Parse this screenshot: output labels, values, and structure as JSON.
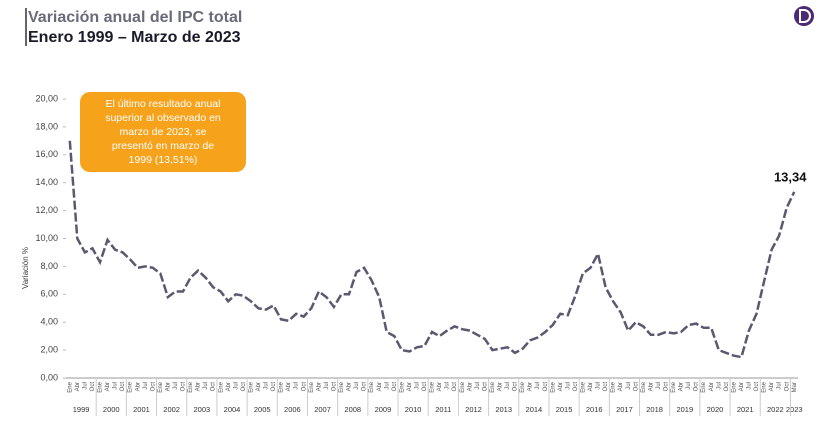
{
  "chart_data": {
    "type": "line",
    "title": "Variación anual del IPC total",
    "subtitle": "Enero 1999 – Marzo de 2023",
    "y_label": "Variación %",
    "annotation": [
      "El último resultado anual",
      "superior al observado en",
      "marzo de 2023, se",
      "presentó en marzo de",
      "1999 (13,51%)"
    ],
    "categories": [
      "Ene",
      "Abr",
      "Jul",
      "Oct",
      "Ene",
      "Abr",
      "Jul",
      "Oct",
      "Ene",
      "Abr",
      "Jul",
      "Oct",
      "Ene",
      "Abr",
      "Jul",
      "Oct",
      "Ene",
      "Abr",
      "Jul",
      "Oct",
      "Ene",
      "Abr",
      "Jul",
      "Oct",
      "Ene",
      "Abr",
      "Jul",
      "Oct",
      "Ene",
      "Abr",
      "Jul",
      "Oct",
      "Ene",
      "Abr",
      "Jul",
      "Oct",
      "Ene",
      "Abr",
      "Jul",
      "Oct",
      "Ene",
      "Abr",
      "Jul",
      "Oct",
      "Ene",
      "Abr",
      "Jul",
      "Oct",
      "Ene",
      "Abr",
      "Jul",
      "Oct",
      "Ene",
      "Abr",
      "Jul",
      "Oct",
      "Ene",
      "Abr",
      "Jul",
      "Oct",
      "Ene",
      "Abr",
      "Jul",
      "Oct",
      "Ene",
      "Abr",
      "Jul",
      "Oct",
      "Ene",
      "Abr",
      "Jul",
      "Oct",
      "Ene",
      "Abr",
      "Jul",
      "Oct",
      "Ene",
      "Abr",
      "Jul",
      "Oct",
      "Ene",
      "Abr",
      "Jul",
      "Oct",
      "Ene",
      "Abr",
      "Jul",
      "Oct",
      "Ene",
      "Abr",
      "Jul",
      "Oct",
      "Ene",
      "Abr",
      "Jul",
      "Oct",
      "Mar"
    ],
    "years": [
      "1999",
      "2000",
      "2001",
      "2002",
      "2003",
      "2004",
      "2005",
      "2006",
      "2007",
      "2008",
      "2009",
      "2010",
      "2011",
      "2012",
      "2013",
      "2014",
      "2015",
      "2016",
      "2017",
      "2018",
      "2019",
      "2020",
      "2021",
      "2022",
      "2023"
    ],
    "series": [
      {
        "name": "IPC",
        "color": "#5b5870",
        "values": [
          17,
          10,
          9,
          9.3,
          8.3,
          9.9,
          9.2,
          9.0,
          8.5,
          7.9,
          8.0,
          7.9,
          7.5,
          5.8,
          6.2,
          6.2,
          7.2,
          7.7,
          7.2,
          6.5,
          6.2,
          5.5,
          6.0,
          5.9,
          5.5,
          5.0,
          4.9,
          5.2,
          4.2,
          4.1,
          4.6,
          4.4,
          5.0,
          6.2,
          5.8,
          5.1,
          6.0,
          6.0,
          7.6,
          7.9,
          7.0,
          5.8,
          3.3,
          3.0,
          2.0,
          1.9,
          2.2,
          2.3,
          3.3,
          3.0,
          3.4,
          3.7,
          3.5,
          3.4,
          3.1,
          2.8,
          2.0,
          2.1,
          2.2,
          1.8,
          2.1,
          2.7,
          2.9,
          3.3,
          3.8,
          4.6,
          4.5,
          5.9,
          7.5,
          7.9,
          8.9,
          6.5,
          5.5,
          4.7,
          3.4,
          4.0,
          3.7,
          3.1,
          3.1,
          3.3,
          3.2,
          3.3,
          3.8,
          3.9,
          3.6,
          3.6,
          2.0,
          1.8,
          1.6,
          1.5,
          3.4,
          4.6,
          6.9,
          9.2,
          10.2,
          12.2,
          13.34
        ],
        "value_labels": [
          null,
          null,
          null,
          null,
          null,
          null,
          null,
          null,
          null,
          null,
          null,
          null,
          null,
          null,
          null,
          null,
          null,
          null,
          null,
          null,
          null,
          null,
          null,
          null,
          null,
          null,
          null,
          null,
          null,
          null,
          null,
          null,
          null,
          null,
          null,
          null,
          null,
          null,
          null,
          null,
          null,
          null,
          null,
          null,
          null,
          null,
          null,
          null,
          null,
          null,
          null,
          null,
          null,
          null,
          null,
          null,
          null,
          null,
          null,
          null,
          null,
          null,
          null,
          null,
          null,
          null,
          null,
          null,
          null,
          null,
          null,
          null,
          null,
          null,
          null,
          null,
          null,
          null,
          null,
          null,
          null,
          null,
          null,
          null,
          null,
          null,
          null,
          null,
          null,
          null,
          null,
          null,
          null,
          null,
          null,
          null,
          "13,34"
        ]
      }
    ],
    "ylim": [
      0,
      20
    ],
    "yticks": [
      {
        "value": 0,
        "label": "0,00"
      },
      {
        "value": 2,
        "label": "2,00"
      },
      {
        "value": 4,
        "label": "4,00"
      },
      {
        "value": 6,
        "label": "6,00"
      },
      {
        "value": 8,
        "label": "8,00"
      },
      {
        "value": 10,
        "label": "10,00"
      },
      {
        "value": 12,
        "label": "12,00"
      },
      {
        "value": 14,
        "label": "14,00"
      },
      {
        "value": 16,
        "label": "16,00"
      },
      {
        "value": 18,
        "label": "18,00"
      },
      {
        "value": 20,
        "label": "20,00"
      }
    ]
  }
}
